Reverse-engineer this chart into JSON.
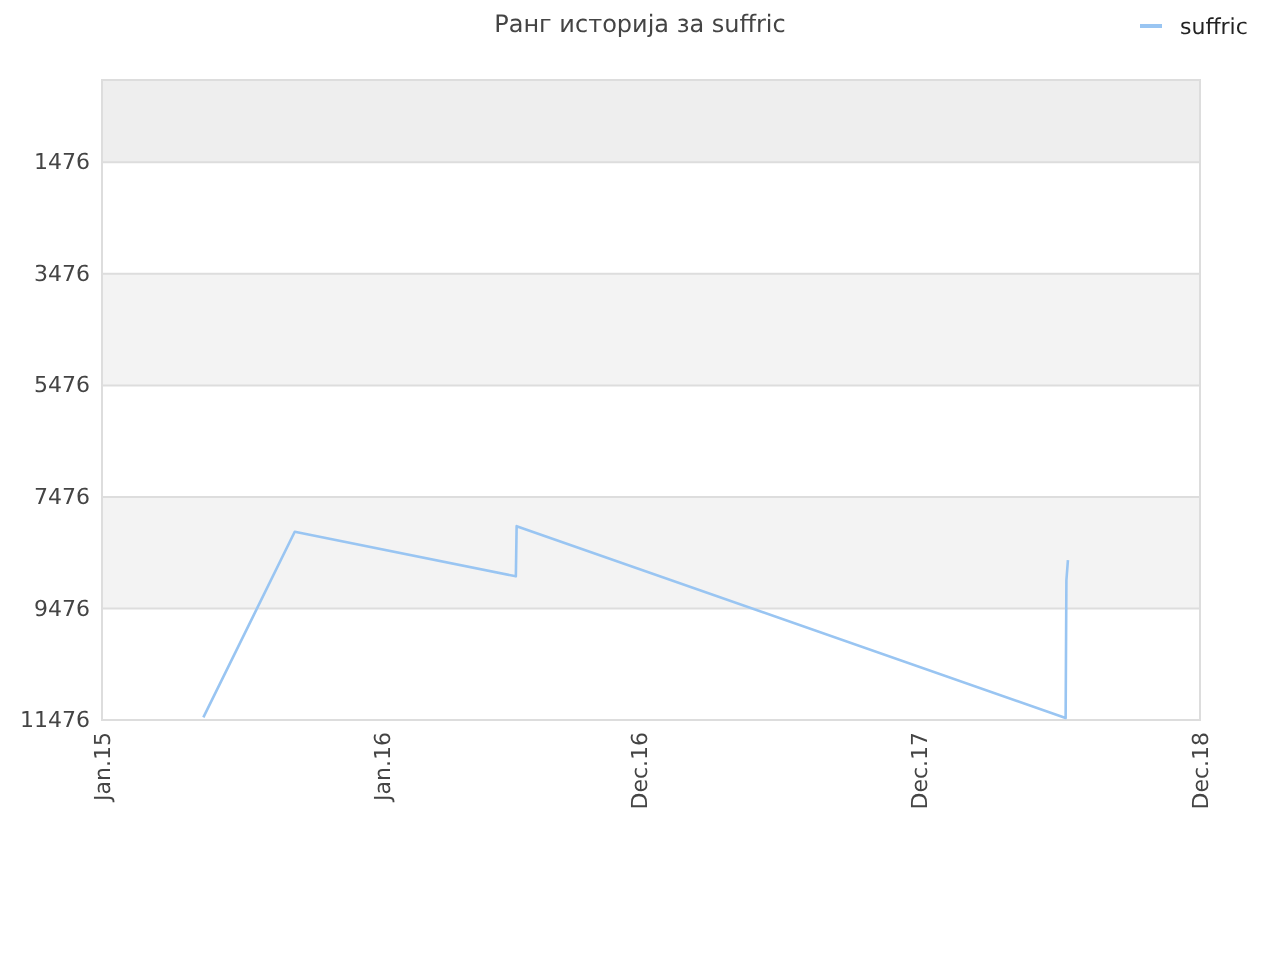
{
  "chart_data": {
    "type": "line",
    "title": "Ранг историја за suffric",
    "x": [
      "2015-05-27",
      "2015-09-23",
      "2016-07-07",
      "2016-07-08",
      "2018-06-23",
      "2018-06-24",
      "2018-06-26"
    ],
    "series": [
      {
        "name": "suffric",
        "color": "#99c5f2",
        "values": [
          11430,
          8100,
          8900,
          8000,
          11440,
          8970,
          8610
        ]
      }
    ],
    "xlim": [
      "2015-01-15",
      "2018-12-15"
    ],
    "xticks": [
      {
        "value": "2015-01-15",
        "label": "Jan.15"
      },
      {
        "value": "2016-01-15",
        "label": "Jan.16"
      },
      {
        "value": "2016-12-15",
        "label": "Dec.16"
      },
      {
        "value": "2017-12-15",
        "label": "Dec.17"
      },
      {
        "value": "2018-12-15",
        "label": "Dec.18"
      }
    ],
    "bands": [
      {
        "axis": "y",
        "from": 0,
        "to": 1476,
        "color": "#eeeeee"
      },
      {
        "axis": "y",
        "from": 3476,
        "to": 5476,
        "color": "#f3f3f3"
      },
      {
        "axis": "y",
        "from": 7476,
        "to": 9476,
        "color": "#f3f3f3"
      }
    ],
    "ylim": [
      11476,
      0
    ],
    "yticks": [
      1476,
      3476,
      5476,
      7476,
      9476,
      11476
    ],
    "grid": "y",
    "legend": "top right",
    "marker": "none",
    "line_style": "solid"
  }
}
